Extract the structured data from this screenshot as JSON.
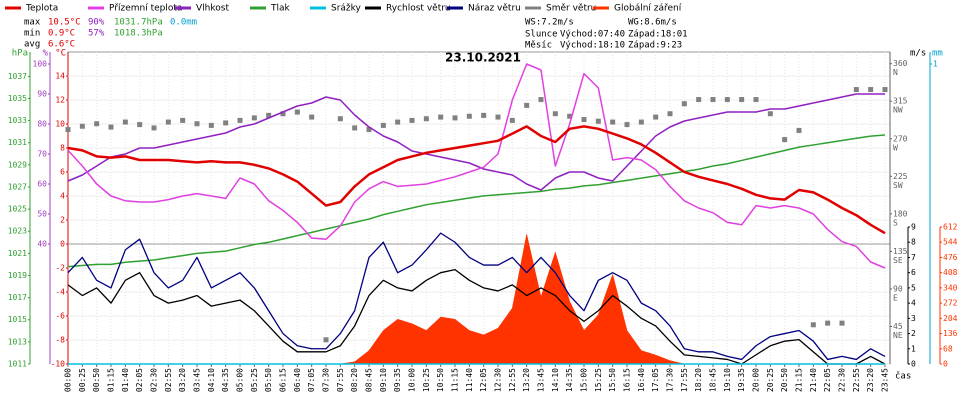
{
  "chart_data": {
    "type": "line",
    "title": "23.10.2021",
    "x_label": "čas",
    "stats": [
      {
        "label": "max",
        "temp": "10.5°C",
        "hum": "90%",
        "pres": "1031.7hPa",
        "rain": "0.0mm"
      },
      {
        "label": "min",
        "temp": "0.9°C",
        "hum": "57%",
        "pres": "1018.3hPa"
      },
      {
        "label": "avg",
        "temp": "6.6°C"
      }
    ],
    "info": {
      "ws": "WS:7.2m/s",
      "wg": "WG:8.6m/s",
      "sun": "Slunce",
      "sun_rise": "Východ:07:40",
      "sun_set": "Západ:18:01",
      "moon": "Měsíc",
      "moon_rise": "Východ:18:10",
      "moon_set": "Západ:9:23"
    },
    "x": [
      "00:00",
      "00:25",
      "00:50",
      "01:15",
      "01:40",
      "02:05",
      "02:30",
      "02:55",
      "03:20",
      "03:45",
      "04:10",
      "04:35",
      "05:00",
      "05:25",
      "05:50",
      "06:15",
      "06:40",
      "07:05",
      "07:30",
      "07:55",
      "08:20",
      "08:45",
      "09:10",
      "09:35",
      "10:00",
      "10:25",
      "10:50",
      "11:15",
      "11:40",
      "12:05",
      "12:30",
      "12:55",
      "13:20",
      "13:45",
      "14:10",
      "14:35",
      "15:00",
      "15:25",
      "15:50",
      "16:15",
      "16:40",
      "17:05",
      "17:30",
      "17:55",
      "18:20",
      "18:45",
      "19:10",
      "19:35",
      "20:00",
      "20:25",
      "20:50",
      "21:15",
      "21:40",
      "22:05",
      "22:30",
      "22:55",
      "23:20",
      "23:45"
    ],
    "axes": {
      "pres": {
        "unit": "hPa",
        "color": "#30a030",
        "lim": [
          1011,
          1039.2
        ],
        "ticks": [
          1011,
          1013,
          1015,
          1017,
          1019,
          1021,
          1023,
          1025,
          1027,
          1029,
          1031,
          1033,
          1035,
          1037
        ]
      },
      "hum": {
        "unit": "%",
        "color": "#a040c0",
        "lim": [
          0,
          104
        ],
        "ticks": [
          40,
          50,
          60,
          70,
          80,
          90,
          100
        ]
      },
      "temp": {
        "unit": "°C",
        "color": "#e00000",
        "lim": [
          -10,
          16
        ],
        "ticks": [
          -10,
          -8,
          -6,
          -4,
          -2,
          0,
          2,
          4,
          6,
          8,
          10,
          12,
          14
        ]
      },
      "dir": {
        "color": "#606060",
        "lim": [
          0,
          374
        ],
        "ticks": [
          45,
          90,
          135,
          180,
          225,
          270,
          315,
          360
        ],
        "names": [
          "NE",
          "E",
          "SE",
          "S",
          "SW",
          "W",
          "NW",
          "N"
        ]
      },
      "wind": {
        "unit": "m/s",
        "color": "#000000",
        "lim": [
          0,
          20.5
        ],
        "ticks": [
          0,
          1,
          2,
          3,
          4,
          5,
          6,
          7,
          8,
          9
        ]
      },
      "rain": {
        "unit": "mm",
        "color": "#00a0d0",
        "lim": [
          0,
          1.04
        ],
        "ticks": [
          1
        ]
      },
      "rad": {
        "color": "#ff3300",
        "lim": [
          0,
          1394
        ],
        "ticks": [
          0,
          68,
          136,
          204,
          272,
          340,
          408,
          476,
          544,
          612
        ]
      }
    },
    "series": [
      {
        "name": "Teplota",
        "color": "#e00000",
        "axis": "temp",
        "values": [
          8.0,
          7.8,
          7.3,
          7.2,
          7.3,
          7.0,
          7.0,
          7.0,
          6.9,
          6.8,
          6.9,
          6.8,
          6.8,
          6.6,
          6.3,
          5.8,
          5.2,
          4.2,
          3.2,
          3.5,
          4.8,
          5.8,
          6.4,
          7.0,
          7.3,
          7.6,
          7.8,
          8.0,
          8.2,
          8.4,
          8.6,
          9.2,
          9.8,
          9.0,
          8.5,
          9.6,
          9.8,
          9.6,
          9.2,
          8.8,
          8.3,
          7.6,
          6.8,
          6.0,
          5.6,
          5.3,
          5.0,
          4.6,
          4.1,
          3.8,
          3.7,
          4.5,
          4.3,
          3.7,
          3.0,
          2.4,
          1.6,
          0.9
        ]
      },
      {
        "name": "Přízemní teplota",
        "color": "#e040e0",
        "axis": "temp",
        "values": [
          7.8,
          6.5,
          5.0,
          4.0,
          3.6,
          3.5,
          3.5,
          3.7,
          4.0,
          4.2,
          4.0,
          3.8,
          5.5,
          5.0,
          3.6,
          2.8,
          1.8,
          0.5,
          0.4,
          1.5,
          3.5,
          4.6,
          5.2,
          4.8,
          4.9,
          5.0,
          5.3,
          5.6,
          6.0,
          6.4,
          7.5,
          12.0,
          15.0,
          14.5,
          6.5,
          10.0,
          14.2,
          13.0,
          7.0,
          7.2,
          7.0,
          6.2,
          4.8,
          3.6,
          3.0,
          2.6,
          1.8,
          1.6,
          3.2,
          3.0,
          3.2,
          3.0,
          2.5,
          1.2,
          0.2,
          -0.2,
          -1.5,
          -2.0
        ]
      },
      {
        "name": "Vlhkost",
        "color": "#9020c0",
        "axis": "hum",
        "values": [
          61,
          63,
          66,
          69,
          70,
          72,
          72,
          73,
          74,
          75,
          76,
          77,
          79,
          80,
          82,
          84,
          86,
          87,
          89,
          88,
          83,
          79,
          76,
          74,
          71,
          70,
          69,
          68,
          67,
          65,
          64,
          63,
          60,
          58,
          62,
          64,
          64,
          62,
          61,
          66,
          71,
          76,
          79,
          81,
          82,
          83,
          84,
          84,
          84,
          85,
          85,
          86,
          87,
          88,
          89,
          90,
          90,
          90
        ]
      },
      {
        "name": "Tlak",
        "color": "#30a030",
        "axis": "pres",
        "values": [
          1019.8,
          1019.9,
          1020.0,
          1020.0,
          1020.2,
          1020.3,
          1020.4,
          1020.6,
          1020.8,
          1021.0,
          1021.1,
          1021.2,
          1021.5,
          1021.8,
          1022.0,
          1022.3,
          1022.6,
          1022.9,
          1023.2,
          1023.5,
          1023.8,
          1024.1,
          1024.5,
          1024.8,
          1025.1,
          1025.4,
          1025.6,
          1025.8,
          1026.0,
          1026.2,
          1026.3,
          1026.4,
          1026.5,
          1026.6,
          1026.8,
          1026.9,
          1027.1,
          1027.2,
          1027.4,
          1027.6,
          1027.8,
          1028.0,
          1028.2,
          1028.4,
          1028.6,
          1028.9,
          1029.1,
          1029.4,
          1029.7,
          1030.0,
          1030.3,
          1030.6,
          1030.8,
          1031.0,
          1031.2,
          1031.4,
          1031.6,
          1031.7
        ]
      },
      {
        "name": "Srážky",
        "color": "#00c0e0",
        "axis": "rain",
        "values": [
          0,
          0,
          0,
          0,
          0,
          0,
          0,
          0,
          0,
          0,
          0,
          0,
          0,
          0,
          0,
          0,
          0,
          0,
          0,
          0,
          0,
          0,
          0,
          0,
          0,
          0,
          0,
          0,
          0,
          0,
          0,
          0,
          0,
          0,
          0,
          0,
          0,
          0,
          0,
          0,
          0,
          0,
          0,
          0,
          0,
          0,
          0,
          0,
          0,
          0,
          0,
          0,
          0,
          0,
          0,
          0,
          0,
          0
        ]
      },
      {
        "name": "Rychlost větru",
        "color": "#000000",
        "axis": "wind",
        "values": [
          5.2,
          4.5,
          5.0,
          4.0,
          5.5,
          6.0,
          4.5,
          4.0,
          4.2,
          4.5,
          3.8,
          4.0,
          4.2,
          3.5,
          2.5,
          1.5,
          0.8,
          0.8,
          0.8,
          1.2,
          2.5,
          4.5,
          5.5,
          5.0,
          4.8,
          5.5,
          6.0,
          6.2,
          5.5,
          5.0,
          4.8,
          5.2,
          4.5,
          5.0,
          4.5,
          3.5,
          2.8,
          3.5,
          4.5,
          3.8,
          3.0,
          2.5,
          1.5,
          0.6,
          0.5,
          0.4,
          0.3,
          0.0,
          0.6,
          1.2,
          1.5,
          1.6,
          0.8,
          0.0,
          0.0,
          0.0,
          0.5,
          0.0
        ]
      },
      {
        "name": "Náraz větru",
        "color": "#000080",
        "axis": "wind",
        "values": [
          6.0,
          7.0,
          5.5,
          5.0,
          7.5,
          8.2,
          6.0,
          5.0,
          5.5,
          7.0,
          5.0,
          5.5,
          6.0,
          5.0,
          3.5,
          2.0,
          1.2,
          1.0,
          1.0,
          2.0,
          3.5,
          7.0,
          8.0,
          6.0,
          6.5,
          7.5,
          8.6,
          8.0,
          7.0,
          6.5,
          6.5,
          7.0,
          6.0,
          7.0,
          6.0,
          4.5,
          3.5,
          5.5,
          6.0,
          5.5,
          4.0,
          3.5,
          2.5,
          1.0,
          0.8,
          0.8,
          0.5,
          0.3,
          1.2,
          1.8,
          2.0,
          2.2,
          1.5,
          0.3,
          0.5,
          0.3,
          1.0,
          0.5
        ]
      },
      {
        "name": "Směr větru",
        "color": "#808080",
        "axis": "dir",
        "marker": "square",
        "values": [
          281,
          285,
          288,
          284,
          290,
          287,
          283,
          290,
          292,
          288,
          286,
          289,
          292,
          295,
          298,
          300,
          302,
          296,
          29,
          294,
          283,
          281,
          286,
          290,
          292,
          294,
          296,
          295,
          297,
          298,
          296,
          292,
          310,
          317,
          300,
          297,
          293,
          291,
          290,
          287,
          290,
          296,
          300,
          312,
          317,
          317,
          317,
          317,
          317,
          300,
          269,
          280,
          47,
          49,
          49,
          329,
          329,
          329
        ]
      },
      {
        "name": "Globální záření",
        "color": "#ff3300",
        "axis": "rad",
        "area": true,
        "values": [
          0,
          0,
          0,
          0,
          0,
          0,
          0,
          0,
          0,
          0,
          0,
          0,
          0,
          0,
          0,
          0,
          0,
          0,
          0,
          0,
          10,
          60,
          150,
          200,
          180,
          150,
          210,
          200,
          150,
          130,
          160,
          250,
          580,
          300,
          500,
          280,
          150,
          220,
          400,
          150,
          60,
          40,
          15,
          0,
          0,
          0,
          0,
          0,
          0,
          0,
          0,
          0,
          0,
          0,
          0,
          0,
          0,
          0
        ]
      }
    ]
  }
}
